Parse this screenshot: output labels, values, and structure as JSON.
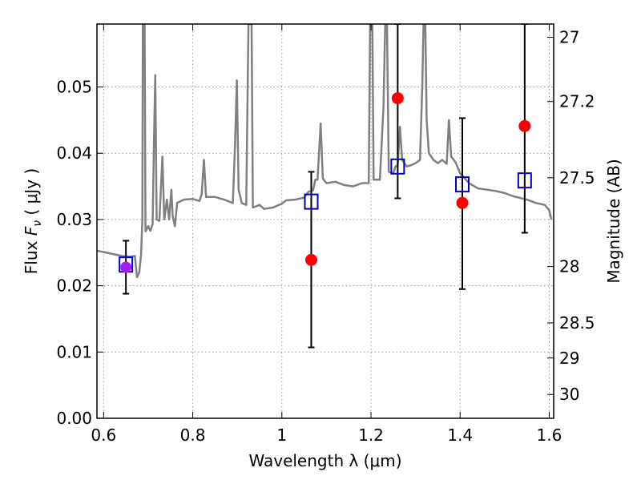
{
  "chart_data": {
    "type": "scatter",
    "title": "",
    "xlabel": "Wavelength  λ (μm)",
    "ylabel_left": {
      "prefix": "Flux  ",
      "symbol": "F",
      "subscript": "ν",
      "unit": "  ( μJy )"
    },
    "ylabel_right": "Magnitude (AB)",
    "xlim": [
      0.585,
      1.61
    ],
    "ylim": [
      0.0,
      0.0595
    ],
    "grid": true,
    "x_ticks": [
      0.6,
      0.8,
      1.0,
      1.2,
      1.4,
      1.6
    ],
    "x_tick_labels": [
      "0.6",
      "0.8",
      "1",
      "1.2",
      "1.4",
      "1.6"
    ],
    "y_ticks": [
      0.0,
      0.01,
      0.02,
      0.03,
      0.04,
      0.05
    ],
    "y_tick_labels": [
      "0.00",
      "0.01",
      "0.02",
      "0.03",
      "0.04",
      "0.05"
    ],
    "right_axis_ticks": [
      {
        "label": "27",
        "flux": 0.0575
      },
      {
        "label": "27.2",
        "flux": 0.0478
      },
      {
        "label": "27.5",
        "flux": 0.0363
      },
      {
        "label": "28",
        "flux": 0.0229
      },
      {
        "label": "28.5",
        "flux": 0.0144
      },
      {
        "label": "29",
        "flux": 0.0091
      },
      {
        "label": "30",
        "flux": 0.0036
      }
    ],
    "colors": {
      "model": "#808080",
      "observed": "#ff0000",
      "synthetic": "#0000cc",
      "errorbar": "#000000",
      "overlap": "#a020f0",
      "grid": "#999999"
    },
    "series": [
      {
        "kind": "line",
        "points": [
          [
            0.585,
            0.0253
          ],
          [
            0.62,
            0.0248
          ],
          [
            0.64,
            0.0245
          ],
          [
            0.66,
            0.0244
          ],
          [
            0.67,
            0.0245
          ],
          [
            0.675,
            0.0213
          ],
          [
            0.68,
            0.022
          ],
          [
            0.684,
            0.0248
          ],
          [
            0.687,
            0.03
          ],
          [
            0.688,
            0.0595
          ],
          [
            0.692,
            0.0595
          ],
          [
            0.694,
            0.0282
          ],
          [
            0.7,
            0.029
          ],
          [
            0.705,
            0.0283
          ],
          [
            0.71,
            0.0293
          ],
          [
            0.713,
            0.042
          ],
          [
            0.716,
            0.0518
          ],
          [
            0.719,
            0.03
          ],
          [
            0.725,
            0.0298
          ],
          [
            0.732,
            0.0395
          ],
          [
            0.736,
            0.03
          ],
          [
            0.742,
            0.033
          ],
          [
            0.747,
            0.03
          ],
          [
            0.752,
            0.0345
          ],
          [
            0.755,
            0.0305
          ],
          [
            0.76,
            0.029
          ],
          [
            0.765,
            0.0325
          ],
          [
            0.78,
            0.033
          ],
          [
            0.8,
            0.0331
          ],
          [
            0.815,
            0.0328
          ],
          [
            0.82,
            0.0338
          ],
          [
            0.825,
            0.039
          ],
          [
            0.83,
            0.0334
          ],
          [
            0.85,
            0.0334
          ],
          [
            0.87,
            0.033
          ],
          [
            0.89,
            0.0325
          ],
          [
            0.895,
            0.0415
          ],
          [
            0.899,
            0.051
          ],
          [
            0.903,
            0.0345
          ],
          [
            0.91,
            0.0325
          ],
          [
            0.92,
            0.0322
          ],
          [
            0.925,
            0.0595
          ],
          [
            0.932,
            0.0595
          ],
          [
            0.935,
            0.0318
          ],
          [
            0.95,
            0.0322
          ],
          [
            0.96,
            0.0316
          ],
          [
            0.98,
            0.0318
          ],
          [
            1.0,
            0.0324
          ],
          [
            1.01,
            0.0329
          ],
          [
            1.03,
            0.033
          ],
          [
            1.05,
            0.0333
          ],
          [
            1.06,
            0.0342
          ],
          [
            1.07,
            0.0344
          ],
          [
            1.075,
            0.036
          ],
          [
            1.08,
            0.036
          ],
          [
            1.087,
            0.0445
          ],
          [
            1.092,
            0.0362
          ],
          [
            1.1,
            0.0355
          ],
          [
            1.12,
            0.0357
          ],
          [
            1.14,
            0.0352
          ],
          [
            1.16,
            0.035
          ],
          [
            1.18,
            0.0355
          ],
          [
            1.195,
            0.0355
          ],
          [
            1.198,
            0.0595
          ],
          [
            1.203,
            0.0595
          ],
          [
            1.206,
            0.036
          ],
          [
            1.22,
            0.036
          ],
          [
            1.228,
            0.047
          ],
          [
            1.232,
            0.0595
          ],
          [
            1.236,
            0.0595
          ],
          [
            1.24,
            0.0372
          ],
          [
            1.25,
            0.037
          ],
          [
            1.255,
            0.038
          ],
          [
            1.26,
            0.0382
          ],
          [
            1.265,
            0.044
          ],
          [
            1.27,
            0.039
          ],
          [
            1.28,
            0.038
          ],
          [
            1.29,
            0.0382
          ],
          [
            1.3,
            0.0385
          ],
          [
            1.31,
            0.039
          ],
          [
            1.315,
            0.05
          ],
          [
            1.318,
            0.0595
          ],
          [
            1.322,
            0.0595
          ],
          [
            1.325,
            0.045
          ],
          [
            1.33,
            0.04
          ],
          [
            1.34,
            0.039
          ],
          [
            1.35,
            0.0385
          ],
          [
            1.36,
            0.039
          ],
          [
            1.37,
            0.0384
          ],
          [
            1.375,
            0.045
          ],
          [
            1.38,
            0.0395
          ],
          [
            1.39,
            0.0386
          ],
          [
            1.4,
            0.037
          ],
          [
            1.42,
            0.0355
          ],
          [
            1.44,
            0.0347
          ],
          [
            1.46,
            0.0345
          ],
          [
            1.48,
            0.0343
          ],
          [
            1.5,
            0.034
          ],
          [
            1.52,
            0.0335
          ],
          [
            1.55,
            0.033
          ],
          [
            1.57,
            0.0325
          ],
          [
            1.59,
            0.0322
          ],
          [
            1.6,
            0.0314
          ],
          [
            1.605,
            0.03
          ]
        ]
      },
      {
        "kind": "observed",
        "points": [
          {
            "x": 1.066,
            "y": 0.0239
          },
          {
            "x": 1.26,
            "y": 0.0483
          },
          {
            "x": 1.405,
            "y": 0.0325
          },
          {
            "x": 1.545,
            "y": 0.0441
          }
        ]
      },
      {
        "kind": "synthetic",
        "points": [
          {
            "x": 0.65,
            "y": 0.0232,
            "err_low": 0.0188,
            "err_high": 0.0268
          },
          {
            "x": 1.066,
            "y": 0.0327,
            "err_low": 0.0107,
            "err_high": 0.0372
          },
          {
            "x": 1.26,
            "y": 0.038,
            "err_low": 0.0332,
            "err_high": 0.0595
          },
          {
            "x": 1.405,
            "y": 0.0353,
            "err_low": 0.0195,
            "err_high": 0.0453
          },
          {
            "x": 1.545,
            "y": 0.0359,
            "err_low": 0.028,
            "err_high": 0.0595
          }
        ]
      },
      {
        "kind": "overlap",
        "points": [
          {
            "x": 0.65,
            "y": 0.0228
          }
        ]
      }
    ]
  }
}
